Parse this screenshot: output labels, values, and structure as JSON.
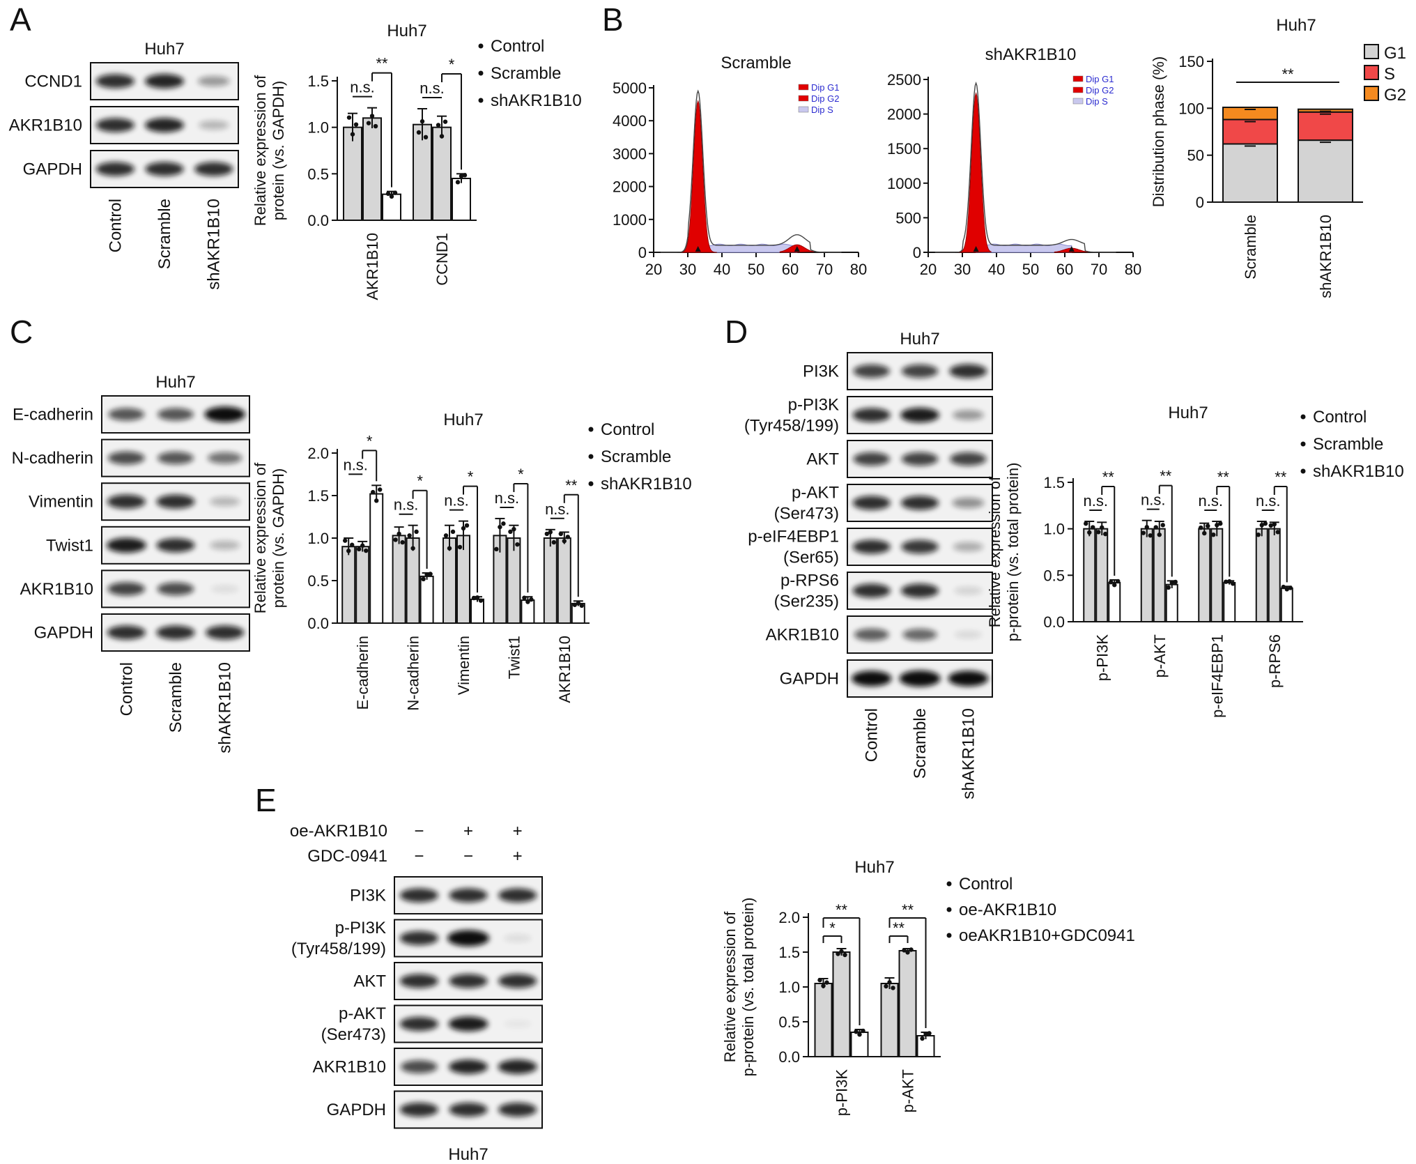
{
  "panels": [
    "A",
    "B",
    "C",
    "D",
    "E"
  ],
  "cell_line": "Huh7",
  "groups_sh": [
    "Control",
    "Scramble",
    "shAKR1B10"
  ],
  "legend_sh": [
    "Control",
    "Scramble",
    "shAKR1B10"
  ],
  "legend_oe": [
    "Control",
    "oe-AKR1B10",
    "oeAKR1B10+GDC0941"
  ],
  "panelA": {
    "blot_title": "Huh7",
    "blot_rows": [
      "CCND1",
      "AKR1B10",
      "GAPDH"
    ],
    "band_intensity": [
      [
        1.0,
        1.05,
        0.45
      ],
      [
        1.0,
        1.05,
        0.3
      ],
      [
        1.0,
        1.0,
        1.0
      ]
    ]
  },
  "panelB": {
    "hist_titles": [
      "Scramble",
      "shAKR1B10"
    ],
    "hist_legend": [
      "Dip G1",
      "Dip G2",
      "Dip S"
    ],
    "bar_legend": [
      "G1",
      "S",
      "G2"
    ]
  },
  "panelC": {
    "blot_title": "Huh7",
    "blot_rows": [
      "E-cadherin",
      "N-cadherin",
      "Vimentin",
      "Twist1",
      "AKR1B10",
      "GAPDH"
    ],
    "band_intensity": [
      [
        0.8,
        0.8,
        1.2
      ],
      [
        0.85,
        0.8,
        0.65
      ],
      [
        1.0,
        1.0,
        0.3
      ],
      [
        1.1,
        1.0,
        0.3
      ],
      [
        0.9,
        0.85,
        0.1
      ],
      [
        1.0,
        1.0,
        1.0
      ]
    ]
  },
  "panelD": {
    "blot_title": "Huh7",
    "blot_rows": [
      "PI3K",
      "p-PI3K\n(Tyr458/199)",
      "AKT",
      "p-AKT\n(Ser473)",
      "p-eIF4EBP1\n(Ser65)",
      "p-RPS6\n(Ser235)",
      "AKR1B10",
      "GAPDH"
    ],
    "band_intensity": [
      [
        0.9,
        0.9,
        1.0
      ],
      [
        1.0,
        1.1,
        0.45
      ],
      [
        0.9,
        0.9,
        0.9
      ],
      [
        1.0,
        1.0,
        0.5
      ],
      [
        1.0,
        0.95,
        0.35
      ],
      [
        1.0,
        1.0,
        0.15
      ],
      [
        0.75,
        0.7,
        0.12
      ],
      [
        1.2,
        1.3,
        1.2
      ]
    ]
  },
  "panelE": {
    "treatment_rows": [
      {
        "label": "oe-AKR1B10",
        "signs": [
          "−",
          "+",
          "+"
        ]
      },
      {
        "label": "GDC-0941",
        "signs": [
          "−",
          "−",
          "+"
        ]
      }
    ],
    "blot_rows": [
      "PI3K",
      "p-PI3K\n(Tyr458/199)",
      "AKT",
      "p-AKT\n(Ser473)",
      "AKR1B10",
      "GAPDH"
    ],
    "band_intensity": [
      [
        1.0,
        1.0,
        1.0
      ],
      [
        1.0,
        1.3,
        0.1
      ],
      [
        1.0,
        1.0,
        1.0
      ],
      [
        1.0,
        1.1,
        0.05
      ],
      [
        0.85,
        1.05,
        1.05
      ],
      [
        1.0,
        1.0,
        1.0
      ]
    ],
    "blot_caption": "Huh7"
  },
  "chart_data": [
    {
      "id": "A-bar",
      "type": "bar",
      "title": "Huh7",
      "ylabel": "Relative expression of\nprotein (vs. GAPDH)",
      "ylim": [
        0,
        1.5
      ],
      "yticks": [
        "0.0",
        "0.5",
        "1.0",
        "1.5"
      ],
      "categories": [
        "AKR1B10",
        "CCND1"
      ],
      "series": [
        {
          "name": "Control",
          "values": [
            1.0,
            1.03
          ],
          "errors": [
            0.15,
            0.17
          ]
        },
        {
          "name": "Scramble",
          "values": [
            1.1,
            1.0
          ],
          "errors": [
            0.11,
            0.12
          ]
        },
        {
          "name": "shAKR1B10",
          "values": [
            0.28,
            0.45
          ],
          "errors": [
            0.03,
            0.05
          ]
        }
      ],
      "annotations": [
        {
          "category": "AKR1B10",
          "ns": "n.s.",
          "sig": "**"
        },
        {
          "category": "CCND1",
          "ns": "n.s.",
          "sig": "*"
        }
      ]
    },
    {
      "id": "B-hist-scramble",
      "type": "area",
      "title": "Scramble",
      "xlim": [
        20,
        80
      ],
      "ylim": [
        0,
        5000
      ],
      "xticks": [
        "20",
        "30",
        "40",
        "50",
        "60",
        "70",
        "80"
      ],
      "yticks": [
        "0",
        "1000",
        "2000",
        "3000",
        "4000",
        "5000"
      ],
      "g1_peak": {
        "x": 33,
        "y": 4600
      },
      "g2_peak": {
        "x": 62,
        "y": 230
      },
      "s_level": 250
    },
    {
      "id": "B-hist-sh",
      "type": "area",
      "title": "shAKR1B10",
      "xlim": [
        20,
        80
      ],
      "ylim": [
        0,
        2500
      ],
      "xticks": [
        "20",
        "30",
        "40",
        "50",
        "60",
        "70",
        "80"
      ],
      "yticks": [
        "0",
        "500",
        "1000",
        "1500",
        "2000",
        "2500"
      ],
      "g1_peak": {
        "x": 34,
        "y": 2300
      },
      "g2_peak": {
        "x": 62,
        "y": 60
      },
      "s_level": 120
    },
    {
      "id": "B-stacked",
      "type": "bar",
      "title": "Huh7",
      "ylabel": "Distribution phase (%)",
      "ylim": [
        0,
        150
      ],
      "yticks": [
        "0",
        "50",
        "100",
        "150"
      ],
      "categories": [
        "Scramble",
        "shAKR1B10"
      ],
      "series": [
        {
          "name": "G1",
          "values": [
            62,
            66
          ],
          "color": "#d3d3d3"
        },
        {
          "name": "S",
          "values": [
            26,
            30
          ],
          "color": "#f04848"
        },
        {
          "name": "G2",
          "values": [
            13,
            3
          ],
          "color": "#f58a1f"
        }
      ],
      "sig": "**"
    },
    {
      "id": "C-bar",
      "type": "bar",
      "title": "Huh7",
      "ylabel": "Relative expression of\nprotein (vs. GAPDH)",
      "ylim": [
        0,
        2.0
      ],
      "yticks": [
        "0.0",
        "0.5",
        "1.0",
        "1.5",
        "2.0"
      ],
      "categories": [
        "E-cadherin",
        "N-cadherin",
        "Vimentin",
        "Twist1",
        "AKR1B10"
      ],
      "series": [
        {
          "name": "Control",
          "values": [
            0.9,
            1.03,
            1.0,
            1.03,
            1.0
          ],
          "errors": [
            0.1,
            0.1,
            0.15,
            0.2,
            0.1
          ]
        },
        {
          "name": "Scramble",
          "values": [
            0.9,
            1.0,
            1.03,
            1.0,
            1.0
          ],
          "errors": [
            0.06,
            0.15,
            0.17,
            0.15,
            0.07
          ]
        },
        {
          "name": "shAKR1B10",
          "values": [
            1.52,
            0.55,
            0.28,
            0.27,
            0.23
          ],
          "errors": [
            0.1,
            0.04,
            0.03,
            0.04,
            0.03
          ]
        }
      ],
      "annotations": [
        {
          "category": "E-cadherin",
          "ns": "n.s.",
          "sig": "*"
        },
        {
          "category": "N-cadherin",
          "ns": "n.s.",
          "sig": "*"
        },
        {
          "category": "Vimentin",
          "ns": "n.s.",
          "sig": "*"
        },
        {
          "category": "Twist1",
          "ns": "n.s.",
          "sig": "*"
        },
        {
          "category": "AKR1B10",
          "ns": "n.s.",
          "sig": "**"
        }
      ]
    },
    {
      "id": "D-bar",
      "type": "bar",
      "title": "Huh7",
      "ylabel": "Relative expression of\np-protein (vs. total protein)",
      "ylim": [
        0,
        1.5
      ],
      "yticks": [
        "0.0",
        "0.5",
        "1.0",
        "1.5"
      ],
      "categories": [
        "p-PI3K",
        "p-AKT",
        "p-eIF4EBP1",
        "p-RPS6"
      ],
      "series": [
        {
          "name": "Control",
          "values": [
            1.0,
            1.0,
            1.0,
            1.0
          ],
          "errors": [
            0.08,
            0.09,
            0.06,
            0.08
          ]
        },
        {
          "name": "Scramble",
          "values": [
            1.0,
            1.0,
            1.0,
            1.0
          ],
          "errors": [
            0.07,
            0.08,
            0.08,
            0.07
          ]
        },
        {
          "name": "shAKR1B10",
          "values": [
            0.42,
            0.4,
            0.42,
            0.36
          ],
          "errors": [
            0.03,
            0.04,
            0.02,
            0.02
          ]
        }
      ],
      "annotations": [
        {
          "category": "p-PI3K",
          "ns": "n.s.",
          "sig": "**"
        },
        {
          "category": "p-AKT",
          "ns": "n.s.",
          "sig": "**"
        },
        {
          "category": "p-eIF4EBP1",
          "ns": "n.s.",
          "sig": "**"
        },
        {
          "category": "p-RPS6",
          "ns": "n.s.",
          "sig": "**"
        }
      ]
    },
    {
      "id": "E-bar",
      "type": "bar",
      "title": "Huh7",
      "ylabel": "Relative expression of\np-protein (vs. total protein)",
      "ylim": [
        0,
        2.0
      ],
      "yticks": [
        "0.0",
        "0.5",
        "1.0",
        "1.5",
        "2.0"
      ],
      "categories": [
        "p-PI3K",
        "p-AKT"
      ],
      "series": [
        {
          "name": "Control",
          "values": [
            1.05,
            1.05
          ],
          "errors": [
            0.07,
            0.08
          ]
        },
        {
          "name": "oe-AKR1B10",
          "values": [
            1.5,
            1.52
          ],
          "errors": [
            0.05,
            0.03
          ]
        },
        {
          "name": "oeAKR1B10+GDC0941",
          "values": [
            0.35,
            0.3
          ],
          "errors": [
            0.04,
            0.05
          ]
        }
      ],
      "annotations": [
        {
          "category": "p-PI3K",
          "sig_12": "*",
          "sig_13": "**"
        },
        {
          "category": "p-AKT",
          "sig_12": "**",
          "sig_13": "**"
        }
      ]
    }
  ]
}
